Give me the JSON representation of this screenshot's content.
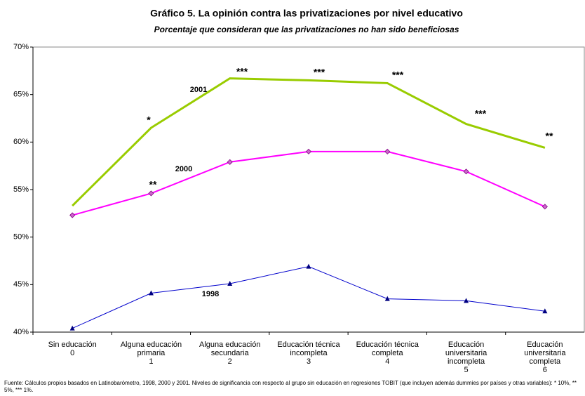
{
  "chart_data": {
    "type": "line",
    "title": "Gráfico 5.  La opinión contra las privatizaciones por nivel educativo",
    "subtitle": "Porcentaje que consideran que las privatizaciones no han sido beneficiosas",
    "categories": [
      "Sin educación\n0",
      "Alguna educación\nprimaria\n1",
      "Alguna educación\nsecundaria\n2",
      "Educación técnica\nincompleta\n3",
      "Educación técnica\ncompleta\n4",
      "Educación\nuniversitaria\nincompleta\n5",
      "Educación\nuniversitaria\ncompleta\n6"
    ],
    "series": [
      {
        "name": "2001",
        "color": "#99cc00",
        "values": [
          53.3,
          61.5,
          66.7,
          66.5,
          66.2,
          61.9,
          59.4
        ]
      },
      {
        "name": "2000",
        "color": "#ff00ff",
        "marker": "diamond",
        "values": [
          52.3,
          54.6,
          57.9,
          59.0,
          59.0,
          56.9,
          53.2
        ]
      },
      {
        "name": "1998",
        "color": "#0000cc",
        "marker": "triangle",
        "values": [
          40.4,
          44.1,
          45.1,
          46.9,
          43.5,
          43.3,
          42.2
        ]
      }
    ],
    "annotations": [
      "*",
      "***",
      "***",
      "***",
      "***",
      "**",
      "**"
    ],
    "ylim": [
      40,
      70
    ],
    "yticks": [
      {
        "value": 40,
        "label": "40%"
      },
      {
        "value": 45,
        "label": "45%"
      },
      {
        "value": 50,
        "label": "50%"
      },
      {
        "value": 55,
        "label": "55%"
      },
      {
        "value": 60,
        "label": "60%"
      },
      {
        "value": 65,
        "label": "65%"
      },
      {
        "value": 70,
        "label": "70%"
      }
    ],
    "source": "Fuente: Cálculos propios basados en Latinobarómetro, 1998, 2000 y 2001. Niveles de significancia con respecto al grupo sin educación en regresiones TOBIT (que incluyen además dummies por países y otras variables): * 10%, ** 5%, *** 1%."
  }
}
